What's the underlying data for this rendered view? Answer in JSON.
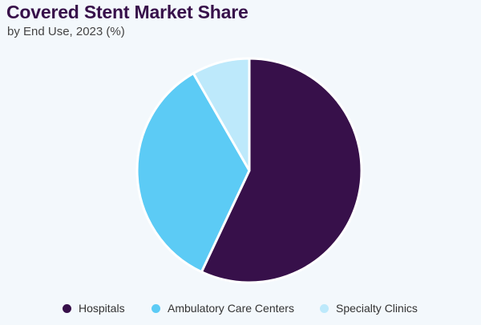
{
  "chart_data": {
    "type": "pie",
    "title": "Covered Stent Market Share",
    "subtitle": "by End Use, 2023 (%)",
    "categories": [
      "Hospitals",
      "Ambulatory Care Centers",
      "Specialty Clinics"
    ],
    "values": [
      57.0,
      34.7,
      8.3
    ],
    "colors": [
      "#37104a",
      "#5ccbf5",
      "#bde9fb"
    ],
    "start_angle": "top, clockwise",
    "legend_position": "bottom"
  },
  "legend": [
    {
      "label": "Hospitals",
      "color": "#37104a"
    },
    {
      "label": "Ambulatory Care Centers",
      "color": "#5ccbf5"
    },
    {
      "label": "Specialty Clinics",
      "color": "#bde9fb"
    }
  ]
}
